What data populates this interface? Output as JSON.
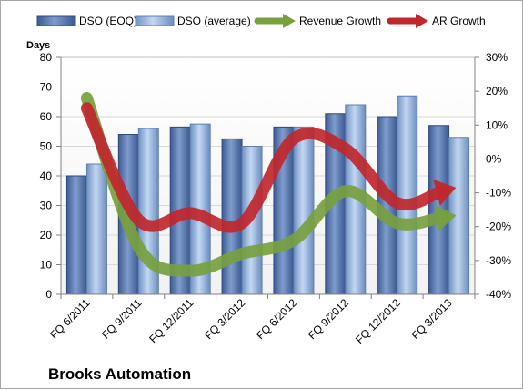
{
  "chart_data": {
    "type": "bar",
    "title": "Brooks Automation",
    "ylabel": "Days",
    "ylim": [
      0,
      80
    ],
    "y2lim": [
      -40,
      30
    ],
    "yticks": [
      "0",
      "10",
      "20",
      "30",
      "40",
      "50",
      "60",
      "70",
      "80"
    ],
    "y2ticks": [
      "-40%",
      "-30%",
      "-20%",
      "-10%",
      "0%",
      "10%",
      "20%",
      "30%"
    ],
    "categories": [
      "FQ 6/2011",
      "FQ 9/2011",
      "FQ 12/2011",
      "FQ 3/2012",
      "FQ 6/2012",
      "FQ 9/2012",
      "FQ 12/2012",
      "FQ 3/2013"
    ],
    "legend_position": "top",
    "grid": true,
    "series": [
      {
        "name": "DSO (EOQ)",
        "type": "bar",
        "axis": "left",
        "color": "#5b7ab3",
        "values": [
          40,
          54,
          56.5,
          52.5,
          56.5,
          61,
          60,
          57
        ]
      },
      {
        "name": "DSO (average)",
        "type": "bar",
        "axis": "left",
        "color": "#9ab8e0",
        "values": [
          44,
          56,
          57.5,
          50,
          56.5,
          64,
          67,
          53
        ]
      },
      {
        "name": "Revenue Growth",
        "type": "arrow-line",
        "axis": "right",
        "color": "#77a03f",
        "values": [
          18,
          -26,
          -33,
          -28,
          -24,
          -9.5,
          -19,
          -17
        ]
      },
      {
        "name": "AR Growth",
        "type": "arrow-line",
        "axis": "right",
        "color": "#c0272d",
        "values": [
          15,
          -18,
          -16,
          -19,
          6,
          3,
          -13,
          -9
        ]
      }
    ]
  }
}
